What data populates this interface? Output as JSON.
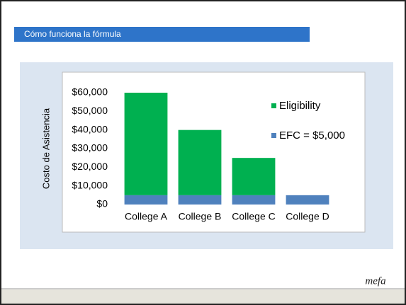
{
  "header": {
    "title": "Cómo funciona la fórmula"
  },
  "chart_data": {
    "type": "bar",
    "stacked": true,
    "ylabel": "Costo de Asistencia",
    "categories": [
      "College A",
      "College B",
      "College C",
      "College D"
    ],
    "series": [
      {
        "name": "EFC = $5,000",
        "color": "#4f81bd",
        "values": [
          5000,
          5000,
          5000,
          5000
        ]
      },
      {
        "name": "Eligibility",
        "color": "#00b050",
        "values": [
          55000,
          35000,
          20000,
          0
        ]
      }
    ],
    "ylim": [
      0,
      60000
    ],
    "yticks": [
      {
        "value": 0,
        "label": "$0"
      },
      {
        "value": 10000,
        "label": "$10,000"
      },
      {
        "value": 20000,
        "label": "$20,000"
      },
      {
        "value": 30000,
        "label": "$30,000"
      },
      {
        "value": 40000,
        "label": "$40,000"
      },
      {
        "value": 50000,
        "label": "$50,000"
      },
      {
        "value": 60000,
        "label": "$60,000"
      }
    ],
    "legend": "right"
  },
  "footer": {
    "logo": "mefa"
  }
}
